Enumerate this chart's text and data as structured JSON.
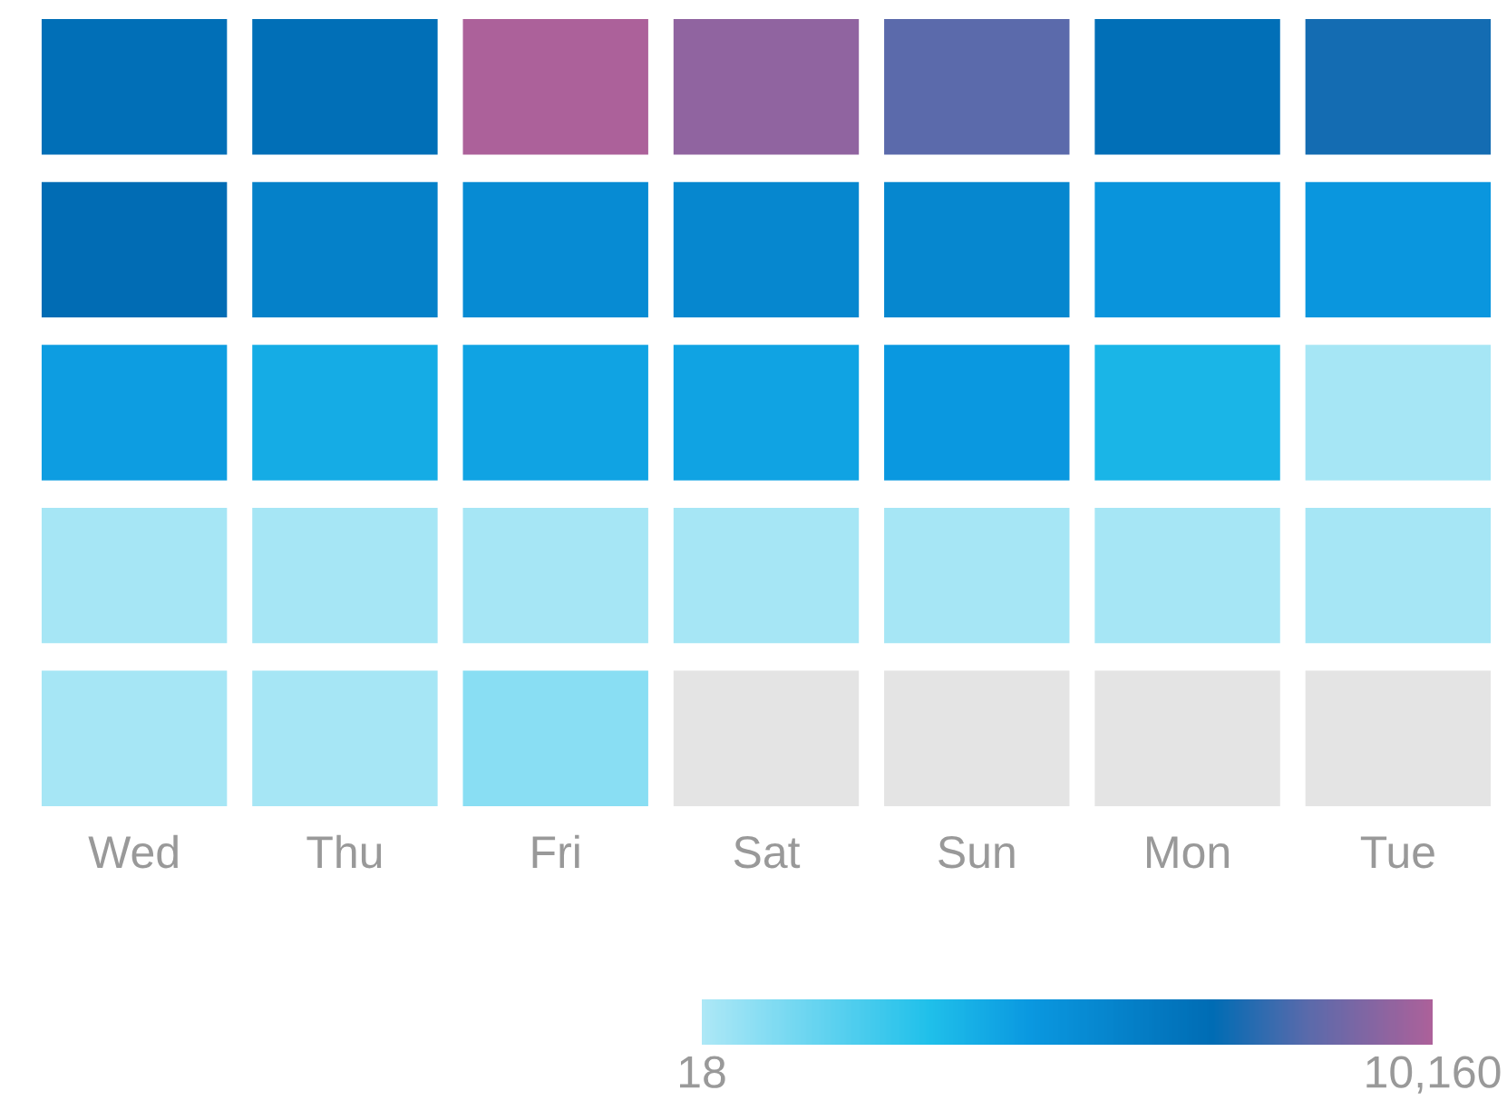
{
  "chart_data": {
    "type": "heatmap",
    "categories": [
      "Wed",
      "Thu",
      "Fri",
      "Sat",
      "Sun",
      "Mon",
      "Tue"
    ],
    "y_categories": [
      null,
      null,
      null,
      null,
      null
    ],
    "cells": [
      [
        6920,
        6920,
        10160,
        9550,
        8420,
        6920,
        7420
      ],
      [
        7120,
        5900,
        5290,
        5600,
        5600,
        4780,
        4680
      ],
      [
        4380,
        3870,
        4180,
        4180,
        4580,
        3570,
        200
      ],
      [
        200,
        200,
        200,
        200,
        200,
        200,
        200
      ],
      [
        200,
        200,
        830,
        null,
        null,
        null,
        null
      ]
    ],
    "clim": [
      18,
      10160
    ],
    "cticks": [
      {
        "value": 18,
        "label": "18"
      },
      {
        "value": 10160,
        "label": "10,160"
      }
    ],
    "tick_labels": "x"
  }
}
